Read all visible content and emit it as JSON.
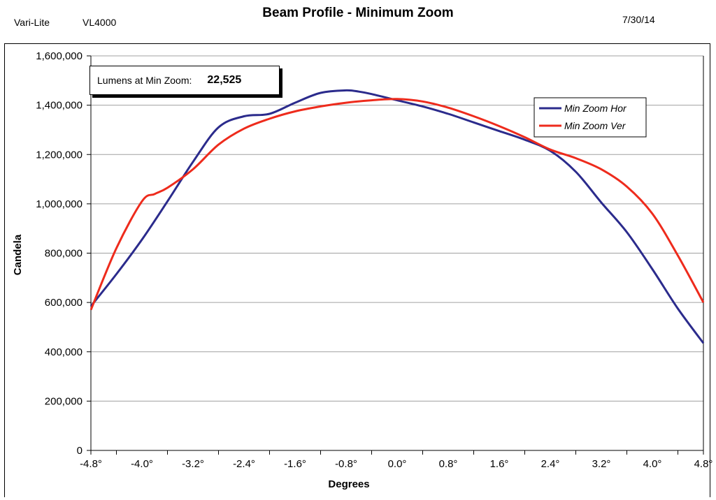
{
  "header": {
    "brand": "Vari-Lite",
    "model": "VL4000",
    "title": "Beam Profile - Minimum Zoom",
    "date": "7/30/14"
  },
  "annotation": {
    "label": "Lumens at Min Zoom:",
    "value": "22,525"
  },
  "colors": {
    "hor": "#2b2b8c",
    "ver": "#ee2b1c",
    "grid": "#a0a0a0"
  },
  "chart_data": {
    "type": "line",
    "title": "Beam Profile - Minimum Zoom",
    "xlabel": "Degrees",
    "ylabel": "Candela",
    "xlim": [
      -4.8,
      4.8
    ],
    "ylim": [
      0,
      1600000
    ],
    "x_ticks": [
      -4.8,
      -4.0,
      -3.2,
      -2.4,
      -1.6,
      -0.8,
      0.0,
      0.8,
      1.6,
      2.4,
      3.2,
      4.0,
      4.8
    ],
    "x_tick_labels": [
      "-4.8°",
      "-4.0°",
      "-3.2°",
      "-2.4°",
      "-1.6°",
      "-0.8°",
      "0.0°",
      "0.8°",
      "1.6°",
      "2.4°",
      "3.2°",
      "4.0°",
      "4.8°"
    ],
    "y_ticks": [
      0,
      200000,
      400000,
      600000,
      800000,
      1000000,
      1200000,
      1400000,
      1600000
    ],
    "y_tick_labels": [
      "0",
      "200,000",
      "400,000",
      "600,000",
      "800,000",
      "1,000,000",
      "1,200,000",
      "1,400,000",
      "1,600,000"
    ],
    "grid": true,
    "legend_position": "top-right",
    "series": [
      {
        "name": "Min Zoom Hor",
        "color": "#2b2b8c",
        "x": [
          -4.8,
          -4.4,
          -4.0,
          -3.6,
          -3.2,
          -2.8,
          -2.4,
          -2.0,
          -1.6,
          -1.2,
          -0.8,
          -0.6,
          -0.4,
          0.0,
          0.4,
          0.8,
          1.2,
          1.6,
          2.0,
          2.4,
          2.8,
          3.2,
          3.6,
          4.0,
          4.4,
          4.8
        ],
        "y": [
          585000,
          715000,
          855000,
          1010000,
          1170000,
          1310000,
          1355000,
          1365000,
          1410000,
          1450000,
          1460000,
          1455000,
          1445000,
          1420000,
          1395000,
          1365000,
          1330000,
          1295000,
          1260000,
          1215000,
          1130000,
          1005000,
          885000,
          735000,
          575000,
          435000
        ]
      },
      {
        "name": "Min Zoom Ver",
        "color": "#ee2b1c",
        "x": [
          -4.8,
          -4.4,
          -4.0,
          -3.8,
          -3.6,
          -3.2,
          -2.8,
          -2.4,
          -2.0,
          -1.6,
          -1.2,
          -0.8,
          -0.4,
          0.0,
          0.4,
          0.8,
          1.2,
          1.6,
          2.0,
          2.4,
          2.8,
          3.2,
          3.6,
          4.0,
          4.4,
          4.8
        ],
        "y": [
          570000,
          820000,
          1010000,
          1040000,
          1065000,
          1140000,
          1240000,
          1305000,
          1345000,
          1375000,
          1395000,
          1410000,
          1420000,
          1425000,
          1415000,
          1390000,
          1355000,
          1315000,
          1270000,
          1220000,
          1185000,
          1140000,
          1070000,
          960000,
          790000,
          600000
        ]
      }
    ]
  }
}
